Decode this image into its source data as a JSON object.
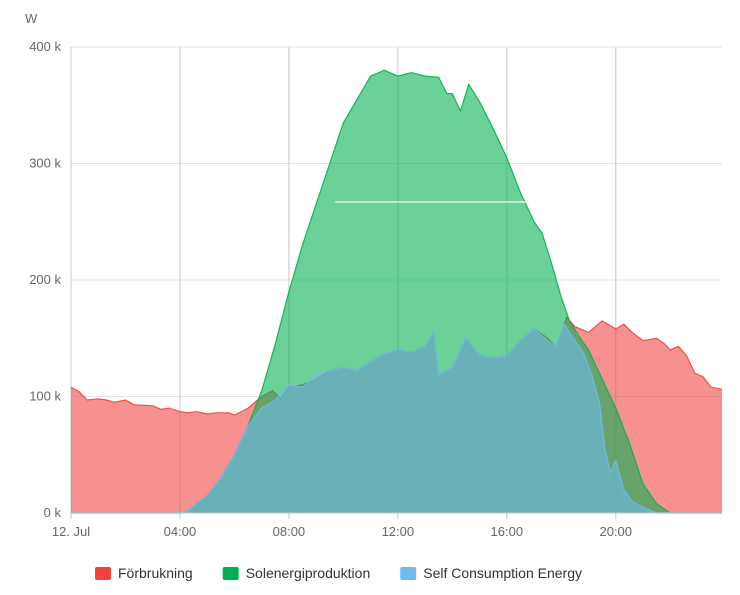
{
  "chart_data": {
    "type": "area",
    "ylabel": "W",
    "ylim": [
      0,
      400000
    ],
    "xlim_hours": [
      0,
      23.9
    ],
    "y_ticks": [
      {
        "value": 0,
        "label": "0 k"
      },
      {
        "value": 100000,
        "label": "100 k"
      },
      {
        "value": 200000,
        "label": "200 k"
      },
      {
        "value": 300000,
        "label": "300 k"
      },
      {
        "value": 400000,
        "label": "400 k"
      }
    ],
    "x_ticks": [
      {
        "value": 0,
        "label": "12. Jul"
      },
      {
        "value": 4,
        "label": "04:00"
      },
      {
        "value": 8,
        "label": "08:00"
      },
      {
        "value": 12,
        "label": "12:00"
      },
      {
        "value": 16,
        "label": "16:00"
      },
      {
        "value": 20,
        "label": "20:00"
      }
    ],
    "grid": "both",
    "legend_position": "bottom",
    "series": [
      {
        "name": "Förbrukning",
        "color": "#f2413f",
        "points": [
          [
            0,
            108000
          ],
          [
            0.3,
            104000
          ],
          [
            0.6,
            97000
          ],
          [
            1,
            98000
          ],
          [
            1.3,
            97000
          ],
          [
            1.6,
            95000
          ],
          [
            2,
            97000
          ],
          [
            2.3,
            93000
          ],
          [
            3,
            92000
          ],
          [
            3.3,
            89000
          ],
          [
            3.6,
            90000
          ],
          [
            4,
            87000
          ],
          [
            4.3,
            86000
          ],
          [
            4.6,
            87000
          ],
          [
            5,
            85000
          ],
          [
            5.3,
            86000
          ],
          [
            5.8,
            86000
          ],
          [
            6,
            84000
          ],
          [
            6.5,
            90000
          ],
          [
            7,
            100000
          ],
          [
            7.4,
            105000
          ],
          [
            7.7,
            98000
          ],
          [
            8,
            108000
          ],
          [
            8.5,
            110000
          ],
          [
            9,
            115000
          ],
          [
            9.5,
            122000
          ],
          [
            10,
            125000
          ],
          [
            10.5,
            122000
          ],
          [
            11,
            130000
          ],
          [
            11.5,
            136000
          ],
          [
            12,
            140000
          ],
          [
            12.5,
            138000
          ],
          [
            13,
            143000
          ],
          [
            13.3,
            155000
          ],
          [
            13.5,
            118000
          ],
          [
            14,
            125000
          ],
          [
            14.5,
            150000
          ],
          [
            15,
            135000
          ],
          [
            15.5,
            133000
          ],
          [
            16,
            135000
          ],
          [
            16.5,
            148000
          ],
          [
            17,
            158000
          ],
          [
            17.5,
            150000
          ],
          [
            17.8,
            142000
          ],
          [
            18.2,
            168000
          ],
          [
            18.5,
            160000
          ],
          [
            19,
            155000
          ],
          [
            19.5,
            165000
          ],
          [
            20,
            158000
          ],
          [
            20.3,
            162000
          ],
          [
            20.6,
            155000
          ],
          [
            21,
            148000
          ],
          [
            21.5,
            150000
          ],
          [
            21.8,
            145000
          ],
          [
            22,
            140000
          ],
          [
            22.3,
            143000
          ],
          [
            22.6,
            135000
          ],
          [
            22.9,
            120000
          ],
          [
            23.2,
            117000
          ],
          [
            23.5,
            108000
          ],
          [
            23.9,
            106000
          ]
        ]
      },
      {
        "name": "Solenergiproduktion",
        "color": "#00b050",
        "points": [
          [
            0,
            0
          ],
          [
            4,
            0
          ],
          [
            4.3,
            2000
          ],
          [
            5,
            15000
          ],
          [
            5.5,
            30000
          ],
          [
            6,
            50000
          ],
          [
            6.5,
            75000
          ],
          [
            7,
            105000
          ],
          [
            7.5,
            145000
          ],
          [
            8,
            190000
          ],
          [
            8.5,
            230000
          ],
          [
            9,
            265000
          ],
          [
            9.5,
            300000
          ],
          [
            10,
            335000
          ],
          [
            10.5,
            355000
          ],
          [
            11,
            375000
          ],
          [
            11.5,
            380000
          ],
          [
            12,
            375000
          ],
          [
            12.5,
            378000
          ],
          [
            13,
            375000
          ],
          [
            13.5,
            374000
          ],
          [
            13.8,
            360000
          ],
          [
            14,
            360000
          ],
          [
            14.3,
            345000
          ],
          [
            14.6,
            368000
          ],
          [
            15,
            353000
          ],
          [
            15.5,
            330000
          ],
          [
            16,
            305000
          ],
          [
            16.5,
            275000
          ],
          [
            17,
            250000
          ],
          [
            17.3,
            240000
          ],
          [
            17.7,
            210000
          ],
          [
            18,
            185000
          ],
          [
            18.3,
            165000
          ],
          [
            18.7,
            150000
          ],
          [
            19,
            140000
          ],
          [
            19.3,
            125000
          ],
          [
            19.6,
            110000
          ],
          [
            20,
            90000
          ],
          [
            20.5,
            60000
          ],
          [
            21,
            25000
          ],
          [
            21.5,
            8000
          ],
          [
            22,
            0
          ],
          [
            23.9,
            0
          ]
        ]
      },
      {
        "name": "Self Consumption Energy",
        "color": "#6cbcf0",
        "points": [
          [
            0,
            0
          ],
          [
            4,
            0
          ],
          [
            4.3,
            2000
          ],
          [
            5,
            15000
          ],
          [
            5.5,
            30000
          ],
          [
            6,
            50000
          ],
          [
            6.5,
            75000
          ],
          [
            7,
            90000
          ],
          [
            7.5,
            97000
          ],
          [
            8,
            110000
          ],
          [
            8.5,
            108000
          ],
          [
            9,
            118000
          ],
          [
            9.5,
            122000
          ],
          [
            10,
            125000
          ],
          [
            10.5,
            122000
          ],
          [
            11,
            130000
          ],
          [
            11.5,
            136000
          ],
          [
            12,
            140000
          ],
          [
            12.5,
            138000
          ],
          [
            13,
            143000
          ],
          [
            13.3,
            155000
          ],
          [
            13.5,
            118000
          ],
          [
            14,
            125000
          ],
          [
            14.5,
            150000
          ],
          [
            15,
            135000
          ],
          [
            15.5,
            133000
          ],
          [
            16,
            135000
          ],
          [
            16.5,
            148000
          ],
          [
            17,
            158000
          ],
          [
            17.5,
            148000
          ],
          [
            17.8,
            142000
          ],
          [
            18.1,
            162000
          ],
          [
            18.5,
            148000
          ],
          [
            18.8,
            138000
          ],
          [
            19.1,
            120000
          ],
          [
            19.4,
            95000
          ],
          [
            19.6,
            55000
          ],
          [
            19.8,
            35000
          ],
          [
            20,
            45000
          ],
          [
            20.3,
            20000
          ],
          [
            20.6,
            10000
          ],
          [
            21,
            5000
          ],
          [
            21.5,
            0
          ],
          [
            23.9,
            0
          ]
        ]
      }
    ],
    "reference_line": {
      "value": 267000,
      "from_hour": 9.7,
      "to_hour": 18.2,
      "color": "#ffffff"
    }
  }
}
